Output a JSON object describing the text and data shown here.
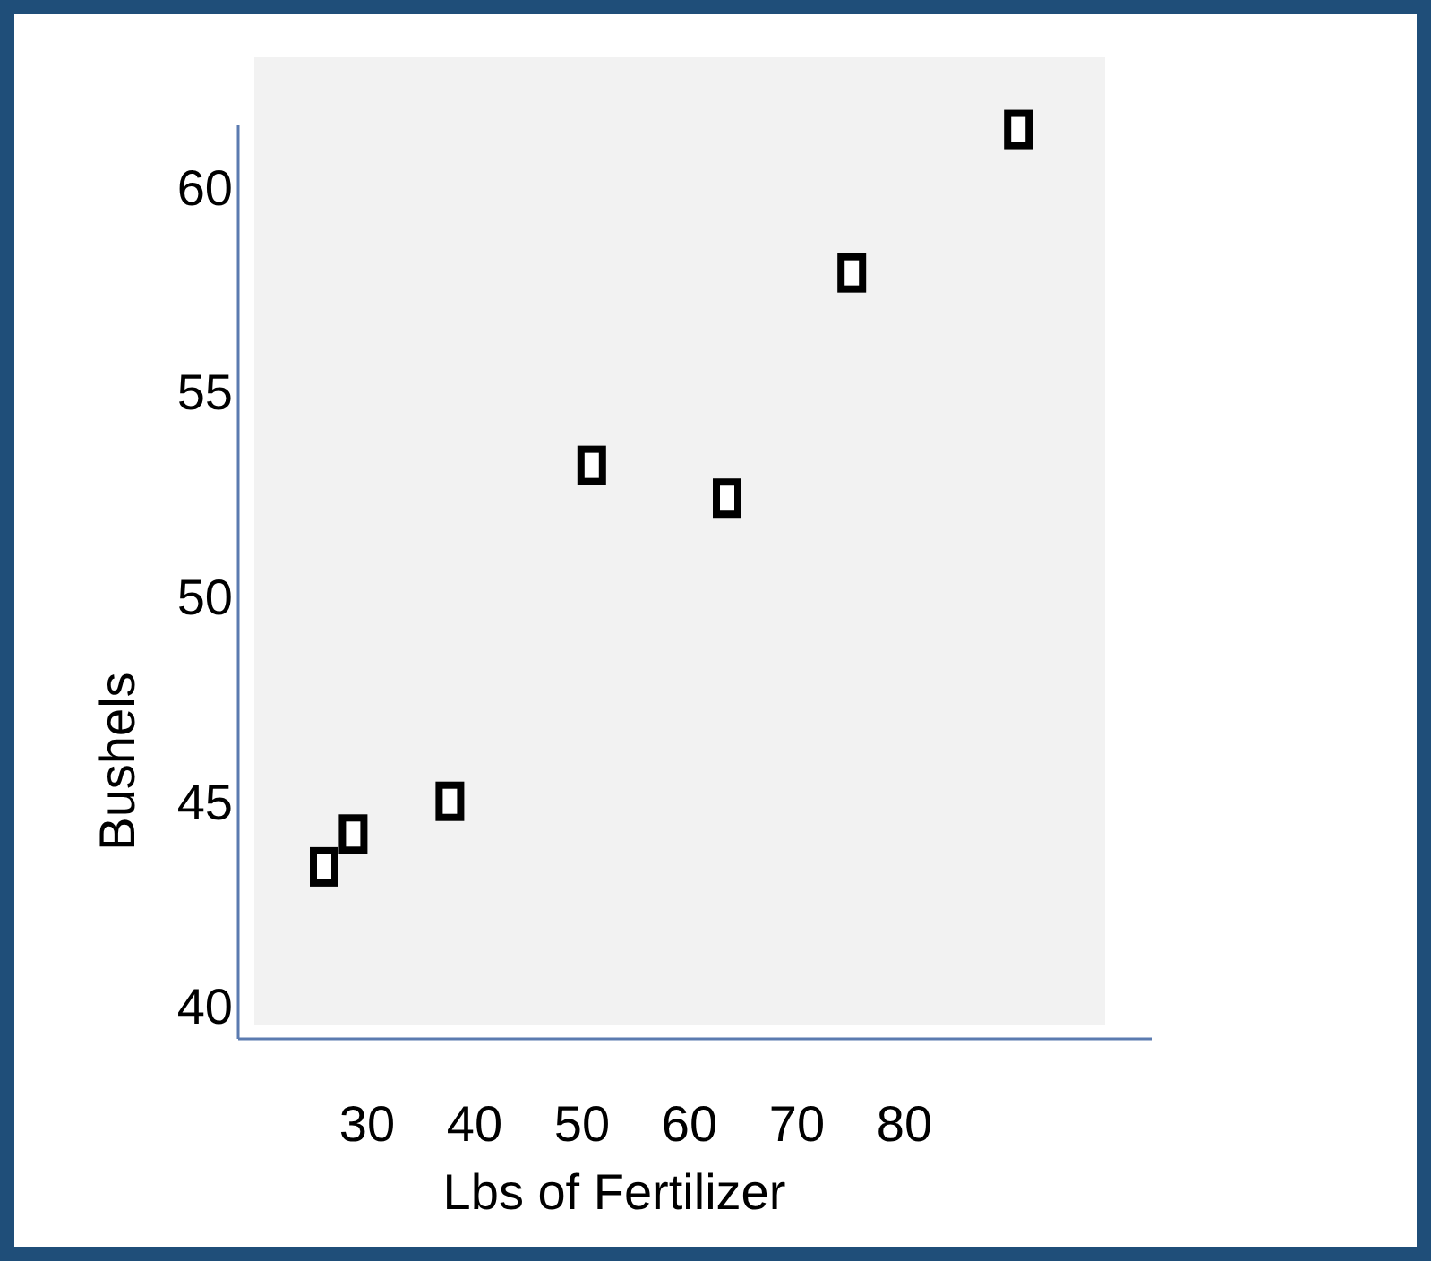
{
  "chart_data": {
    "type": "scatter",
    "xlabel": "Lbs of Fertilizer",
    "ylabel": "Bushels",
    "x": [
      26,
      28.7,
      37.7,
      50.9,
      63.5,
      75.1,
      90.6
    ],
    "values": [
      43.4,
      44.2,
      45,
      53.2,
      52.4,
      57.9,
      61.4
    ],
    "color": "#000000",
    "marker": "square",
    "xlim": [
      18,
      103
    ],
    "xticks": [
      30,
      40,
      50,
      60,
      70,
      80
    ],
    "ylim": [
      39.2,
      61.5
    ],
    "yticks": [
      40,
      45,
      50,
      55,
      60
    ],
    "grid": false
  }
}
